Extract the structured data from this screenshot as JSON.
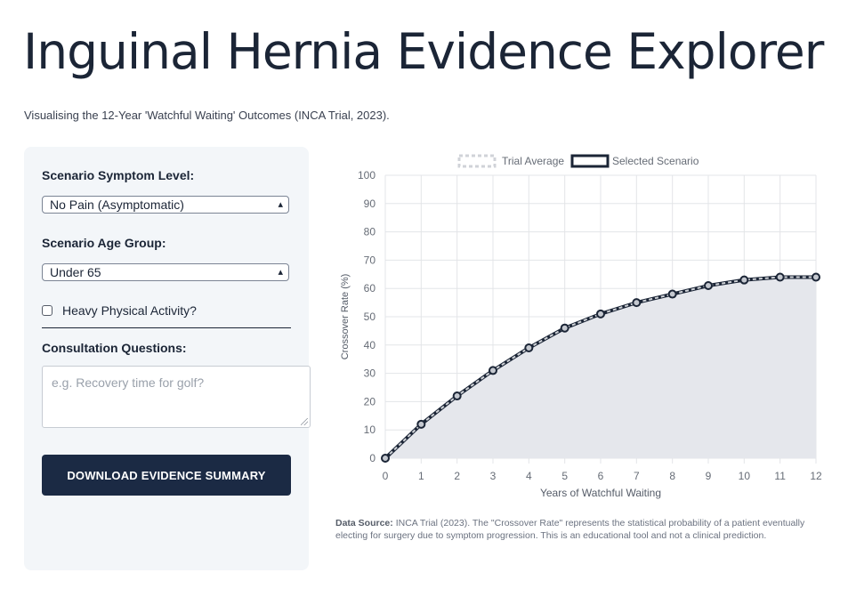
{
  "header": {
    "title": "Inguinal Hernia Evidence Explorer",
    "subtitle": "Visualising the 12-Year 'Watchful Waiting' Outcomes (INCA Trial, 2023)."
  },
  "controls": {
    "symptom_label": "Scenario Symptom Level:",
    "symptom_value": "No Pain (Asymptomatic)",
    "age_label": "Scenario Age Group:",
    "age_value": "Under 65",
    "activity_label": "Heavy Physical Activity?",
    "activity_checked": false,
    "questions_label": "Consultation Questions:",
    "questions_placeholder": "e.g. Recovery time for golf?",
    "questions_value": "",
    "download_label": "DOWNLOAD EVIDENCE SUMMARY"
  },
  "icons": {
    "select_chevron": "chevron-updown-icon",
    "resize_grip": "resize-grip-icon"
  },
  "chart_data": {
    "type": "line",
    "x": [
      0,
      1,
      2,
      3,
      4,
      5,
      6,
      7,
      8,
      9,
      10,
      11,
      12
    ],
    "series": [
      {
        "name": "Trial Average",
        "values": [
          0,
          12,
          22,
          31,
          39,
          46,
          51,
          55,
          58,
          61,
          63,
          64,
          64
        ],
        "color": "#d0d3d8",
        "style": "dashed"
      },
      {
        "name": "Selected Scenario",
        "values": [
          0,
          12,
          22,
          31,
          39,
          46,
          51,
          55,
          58,
          61,
          63,
          64,
          64
        ],
        "color": "#1b2536",
        "fill": "#e5e7ec"
      }
    ],
    "xlabel": "Years of Watchful Waiting",
    "ylabel": "Crossover Rate (%)",
    "xlim": [
      0,
      12
    ],
    "ylim": [
      0,
      100
    ],
    "yticks": [
      0,
      10,
      20,
      30,
      40,
      50,
      60,
      70,
      80,
      90,
      100
    ],
    "xticks": [
      0,
      1,
      2,
      3,
      4,
      5,
      6,
      7,
      8,
      9,
      10,
      11,
      12
    ],
    "grid": true,
    "legend_position": "top"
  },
  "footer": {
    "source_label": "Data Source:",
    "source_text": " INCA Trial (2023). The \"Crossover Rate\" represents the statistical probability of a patient eventually electing for surgery due to symptom progression. This is an educational tool and not a clinical prediction."
  }
}
